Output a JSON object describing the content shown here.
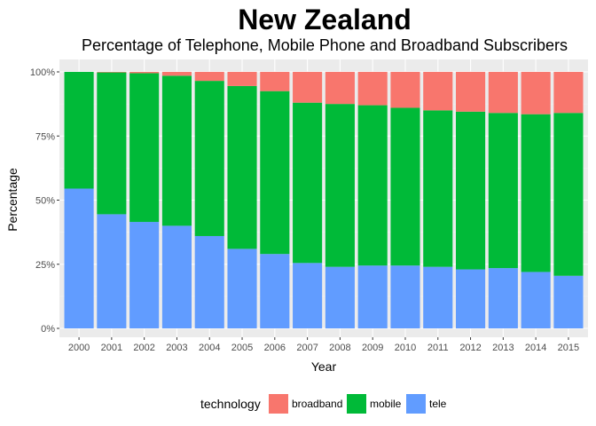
{
  "chart_data": {
    "type": "bar",
    "stacked": true,
    "title": "New Zealand",
    "subtitle": "Percentage of Telephone, Mobile Phone and Broadband Subscribers",
    "xlabel": "Year",
    "ylabel": "Percentage",
    "ylim": [
      0,
      1
    ],
    "yticks": [
      "0%",
      "25%",
      "50%",
      "75%",
      "100%"
    ],
    "ytick_values": [
      0,
      0.25,
      0.5,
      0.75,
      1.0
    ],
    "categories": [
      "2000",
      "2001",
      "2002",
      "2003",
      "2004",
      "2005",
      "2006",
      "2007",
      "2008",
      "2009",
      "2010",
      "2011",
      "2012",
      "2013",
      "2014",
      "2015"
    ],
    "series": [
      {
        "name": "tele",
        "color": "#619CFF",
        "values": [
          0.545,
          0.445,
          0.415,
          0.4,
          0.36,
          0.31,
          0.29,
          0.255,
          0.24,
          0.245,
          0.245,
          0.24,
          0.23,
          0.235,
          0.22,
          0.205
        ]
      },
      {
        "name": "mobile",
        "color": "#00BA38",
        "values": [
          0.455,
          0.553,
          0.58,
          0.585,
          0.605,
          0.635,
          0.635,
          0.625,
          0.635,
          0.625,
          0.615,
          0.61,
          0.615,
          0.605,
          0.615,
          0.635
        ]
      },
      {
        "name": "broadband",
        "color": "#F8766D",
        "values": [
          0.0,
          0.002,
          0.005,
          0.015,
          0.035,
          0.055,
          0.075,
          0.12,
          0.125,
          0.13,
          0.14,
          0.15,
          0.155,
          0.16,
          0.165,
          0.16
        ]
      }
    ],
    "grid": true,
    "legend": {
      "title": "technology",
      "placement": "bottom",
      "items": [
        {
          "label": "broadband",
          "color": "#F8766D"
        },
        {
          "label": "mobile",
          "color": "#00BA38"
        },
        {
          "label": "tele",
          "color": "#619CFF"
        }
      ]
    }
  }
}
